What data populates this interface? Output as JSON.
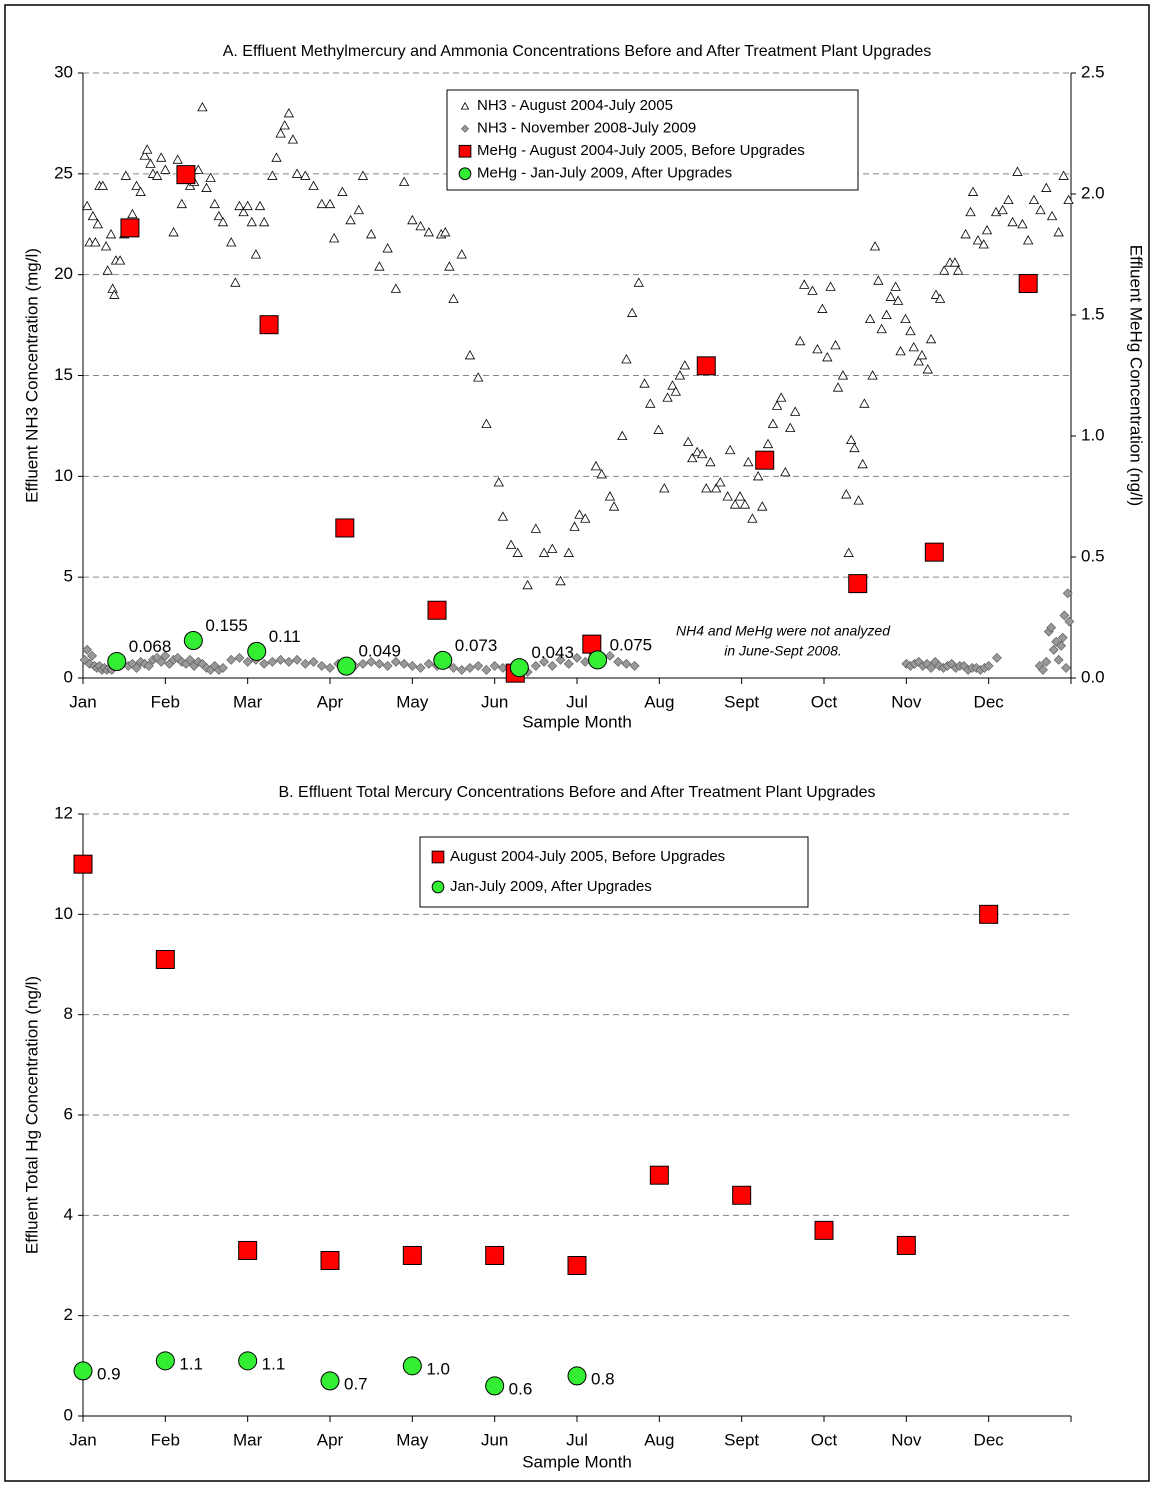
{
  "chart_data": [
    {
      "type": "scatter",
      "title": "A. Effluent Methylmercury and Ammonia Concentrations Before and After Treatment Plant Upgrades",
      "xlabel": "Sample Month",
      "ylabel": "Effluent NH3 Concentration (mg/l)",
      "y2label": "Effluent MeHg Concentration (ng/l)",
      "xlim": [
        0,
        12
      ],
      "xticks": [
        {
          "value": 0,
          "label": "Jan"
        },
        {
          "value": 1,
          "label": "Feb"
        },
        {
          "value": 2,
          "label": "Mar"
        },
        {
          "value": 3,
          "label": "Apr"
        },
        {
          "value": 4,
          "label": "May"
        },
        {
          "value": 5,
          "label": "Jun"
        },
        {
          "value": 6,
          "label": "Jul"
        },
        {
          "value": 7,
          "label": "Aug"
        },
        {
          "value": 8,
          "label": "Sept"
        },
        {
          "value": 9,
          "label": "Oct"
        },
        {
          "value": 10,
          "label": "Nov"
        },
        {
          "value": 11,
          "label": "Dec"
        }
      ],
      "ylim": [
        0,
        30
      ],
      "yticks": [
        0,
        5,
        10,
        15,
        20,
        25,
        30
      ],
      "y2lim": [
        0,
        2.5
      ],
      "y2ticks": [
        {
          "value": 0,
          "label": "0.0"
        },
        {
          "value": 0.5,
          "label": "0.5"
        },
        {
          "value": 1,
          "label": "1.0"
        },
        {
          "value": 1.5,
          "label": "1.5"
        },
        {
          "value": 2,
          "label": "2.0"
        },
        {
          "value": 2.5,
          "label": "2.5"
        }
      ],
      "grid": true,
      "annotation": [
        "NH4 and MeHg were not analyzed",
        "in June-Sept 2008."
      ],
      "series": [
        {
          "name": "NH3 - August 2004-July 2005",
          "marker": "triangle",
          "color": "#ffffff",
          "x": [
            0.05,
            0.08,
            0.12,
            0.15,
            0.18,
            0.2,
            0.24,
            0.28,
            0.3,
            0.34,
            0.36,
            0.38,
            0.4,
            0.45,
            0.5,
            0.52,
            0.6,
            0.65,
            0.7,
            0.75,
            0.78,
            0.82,
            0.85,
            0.9,
            0.95,
            1.0,
            1.1,
            1.15,
            1.2,
            1.25,
            1.3,
            1.35,
            1.4,
            1.45,
            1.5,
            1.55,
            1.6,
            1.65,
            1.7,
            1.8,
            1.85,
            1.9,
            1.95,
            2.0,
            2.05,
            2.1,
            2.15,
            2.2,
            2.3,
            2.35,
            2.4,
            2.45,
            2.5,
            2.55,
            2.6,
            2.7,
            2.8,
            2.9,
            3.0,
            3.05,
            3.15,
            3.25,
            3.35,
            3.4,
            3.5,
            3.6,
            3.7,
            3.8,
            3.9,
            4.0,
            4.1,
            4.2,
            4.35,
            4.4,
            4.45,
            4.5,
            4.6,
            4.7,
            4.8,
            4.9,
            5.05,
            5.1,
            5.2,
            5.28,
            5.4,
            5.5,
            5.6,
            5.7,
            5.8,
            5.9,
            5.97,
            6.03,
            6.1,
            6.23,
            6.3,
            6.4,
            6.45,
            6.55,
            6.6,
            6.67,
            6.75,
            6.82,
            6.89,
            6.99,
            7.06,
            7.1,
            7.16,
            7.2,
            7.25,
            7.31,
            7.35,
            7.4,
            7.46,
            7.52,
            7.57,
            7.62,
            7.69,
            7.74,
            7.83,
            7.86,
            7.92,
            7.98,
            8.04,
            8.08,
            8.13,
            8.2,
            8.25,
            8.32,
            8.38,
            8.43,
            8.48,
            8.53,
            8.59,
            8.65,
            8.71,
            8.76,
            8.86,
            8.92,
            8.98,
            9.04,
            9.08,
            9.14,
            9.17,
            9.23,
            9.27,
            9.3,
            9.33,
            9.37,
            9.42,
            9.47,
            9.49,
            9.56,
            9.59,
            9.62,
            9.66,
            9.7,
            9.76,
            9.81,
            9.87,
            9.9,
            9.93,
            9.99,
            10.05,
            10.09,
            10.15,
            10.19,
            10.26,
            10.3,
            10.36,
            10.41,
            10.46,
            10.53,
            10.59,
            10.63,
            10.72,
            10.78,
            10.81,
            10.87,
            10.94,
            10.98,
            11.09,
            11.17,
            11.24,
            11.29,
            11.35,
            11.41,
            11.48,
            11.55,
            11.63,
            11.7,
            11.77,
            11.85,
            11.91,
            11.97
          ],
          "values": [
            23.4,
            21.6,
            22.9,
            21.6,
            22.5,
            24.4,
            24.4,
            21.4,
            20.2,
            22.0,
            19.3,
            19.0,
            20.7,
            20.7,
            22.0,
            24.9,
            23.0,
            24.4,
            24.1,
            25.9,
            26.2,
            25.5,
            25.0,
            24.9,
            25.8,
            25.2,
            22.1,
            25.7,
            23.5,
            25.1,
            24.4,
            24.6,
            25.2,
            28.3,
            24.3,
            24.8,
            23.5,
            22.9,
            22.6,
            21.6,
            19.6,
            23.4,
            23.1,
            23.4,
            22.6,
            21.0,
            23.4,
            22.6,
            24.9,
            25.8,
            27.0,
            27.4,
            28.0,
            26.7,
            25.0,
            24.9,
            24.4,
            23.5,
            23.5,
            21.8,
            24.1,
            22.7,
            23.2,
            24.9,
            22.0,
            20.4,
            21.3,
            19.3,
            24.6,
            22.7,
            22.4,
            22.1,
            22.0,
            22.1,
            20.4,
            18.8,
            21.0,
            16.0,
            14.9,
            12.6,
            9.7,
            8.0,
            6.6,
            6.2,
            4.6,
            7.4,
            6.2,
            6.4,
            4.8,
            6.2,
            7.5,
            8.1,
            7.9,
            10.5,
            10.1,
            9.0,
            8.5,
            12.0,
            15.8,
            18.1,
            19.6,
            14.6,
            13.6,
            12.3,
            9.4,
            13.9,
            14.5,
            14.2,
            15.0,
            15.5,
            11.7,
            10.9,
            11.2,
            11.1,
            9.4,
            10.7,
            9.4,
            9.7,
            9.0,
            11.3,
            8.6,
            9.0,
            8.6,
            10.7,
            7.9,
            10.0,
            8.5,
            11.6,
            12.6,
            13.5,
            13.9,
            10.2,
            12.4,
            13.2,
            16.7,
            19.5,
            19.2,
            16.3,
            18.3,
            15.9,
            19.4,
            16.5,
            14.4,
            15.0,
            9.1,
            6.2,
            11.8,
            11.4,
            8.8,
            10.6,
            13.6,
            17.8,
            15.0,
            21.4,
            19.7,
            17.3,
            18.0,
            18.9,
            19.4,
            18.7,
            16.2,
            17.8,
            17.2,
            16.4,
            15.7,
            16.0,
            15.3,
            16.8,
            19.0,
            18.8,
            20.2,
            20.6,
            20.6,
            20.2,
            22.0,
            23.1,
            24.1,
            21.7,
            21.5,
            22.2,
            23.1,
            23.2,
            23.7,
            22.6,
            25.1,
            22.5,
            21.7,
            23.7,
            23.2,
            24.3,
            22.9,
            22.1,
            24.9,
            23.7
          ]
        },
        {
          "name": "NH3 - November 2008-July 2009",
          "marker": "diamond",
          "color": "#999999",
          "x": [
            0.02,
            0.05,
            0.08,
            0.11,
            0.14,
            0.17,
            0.2,
            0.23,
            0.26,
            0.29,
            0.32,
            0.35,
            0.38,
            0.45,
            0.55,
            0.6,
            0.65,
            0.7,
            0.75,
            0.8,
            0.85,
            0.9,
            0.95,
            1.0,
            1.05,
            1.1,
            1.15,
            1.2,
            1.25,
            1.3,
            1.35,
            1.4,
            1.45,
            1.5,
            1.55,
            1.6,
            1.65,
            1.7,
            1.8,
            1.9,
            2.0,
            2.1,
            2.2,
            2.3,
            2.4,
            2.5,
            2.6,
            2.7,
            2.8,
            2.9,
            3.0,
            3.1,
            3.3,
            3.4,
            3.5,
            3.6,
            3.7,
            3.8,
            3.9,
            4.0,
            4.1,
            4.2,
            4.3,
            4.5,
            4.6,
            4.7,
            4.8,
            4.9,
            5.0,
            5.1,
            5.2,
            5.3,
            5.4,
            5.5,
            5.6,
            5.7,
            5.8,
            5.9,
            6.0,
            6.1,
            6.2,
            6.3,
            6.4,
            6.5,
            6.6,
            6.7,
            10.0,
            10.05,
            10.1,
            10.15,
            10.2,
            10.25,
            10.3,
            10.35,
            10.4,
            10.45,
            10.5,
            10.55,
            10.6,
            10.65,
            10.7,
            10.75,
            10.8,
            10.85,
            10.9,
            10.95,
            11.0,
            11.1,
            11.62,
            11.66,
            11.7,
            11.73,
            11.76,
            11.79,
            11.82,
            11.85,
            11.88,
            11.9,
            11.92,
            11.94,
            11.96,
            11.98
          ],
          "values": [
            0.9,
            1.4,
            0.7,
            1.1,
            0.6,
            0.5,
            0.6,
            0.4,
            0.5,
            0.4,
            0.5,
            0.4,
            0.6,
            0.7,
            0.6,
            0.7,
            0.5,
            0.8,
            0.7,
            0.6,
            0.9,
            1.0,
            0.8,
            1.1,
            0.7,
            0.9,
            1.0,
            0.8,
            0.7,
            0.9,
            0.6,
            0.8,
            0.7,
            0.5,
            0.4,
            0.6,
            0.4,
            0.5,
            0.9,
            1.0,
            0.8,
            0.9,
            0.7,
            0.8,
            0.9,
            0.8,
            0.9,
            0.7,
            0.8,
            0.6,
            0.5,
            0.7,
            0.6,
            0.7,
            0.8,
            0.7,
            0.6,
            0.8,
            0.7,
            0.6,
            0.5,
            0.7,
            0.6,
            0.5,
            0.4,
            0.5,
            0.6,
            0.4,
            0.6,
            0.5,
            0.4,
            0.5,
            0.3,
            0.6,
            0.8,
            0.6,
            0.9,
            0.7,
            1.0,
            0.8,
            1.2,
            0.9,
            1.1,
            0.8,
            0.7,
            0.6,
            0.7,
            0.6,
            0.7,
            0.8,
            0.6,
            0.7,
            0.5,
            0.8,
            0.6,
            0.5,
            0.6,
            0.7,
            0.5,
            0.6,
            0.6,
            0.4,
            0.5,
            0.5,
            0.4,
            0.5,
            0.6,
            1.0,
            0.6,
            0.4,
            0.8,
            2.3,
            2.5,
            1.4,
            1.8,
            0.9,
            1.6,
            2.0,
            3.1,
            0.5,
            4.2,
            2.8
          ]
        },
        {
          "name": "MeHg - August 2004-July 2005, Before Upgrades",
          "marker": "square",
          "color": "#ff0000",
          "axis": "y2",
          "x": [
            0.57,
            1.25,
            2.26,
            3.18,
            4.3,
            5.25,
            6.18,
            7.57,
            8.28,
            9.41,
            10.34,
            11.48
          ],
          "values": [
            1.86,
            2.08,
            1.46,
            0.62,
            0.28,
            0.02,
            0.14,
            1.29,
            0.9,
            0.39,
            0.52,
            1.63
          ]
        },
        {
          "name": "MeHg - Jan-July 2009, After Upgrades",
          "marker": "circle",
          "color": "#33ee33",
          "axis": "y2",
          "data_labels": true,
          "x": [
            0.41,
            1.34,
            2.11,
            3.2,
            4.37,
            5.3,
            6.25
          ],
          "values": [
            0.068,
            0.155,
            0.11,
            0.049,
            0.073,
            0.043,
            0.075
          ]
        }
      ]
    },
    {
      "type": "scatter",
      "title": "B. Effluent Total Mercury Concentrations Before and After Treatment Plant Upgrades",
      "xlabel": "Sample Month",
      "ylabel": "Effluent Total Hg Concentration (ng/l)",
      "xlim": [
        0,
        12
      ],
      "xticks": [
        {
          "value": 0,
          "label": "Jan"
        },
        {
          "value": 1,
          "label": "Feb"
        },
        {
          "value": 2,
          "label": "Mar"
        },
        {
          "value": 3,
          "label": "Apr"
        },
        {
          "value": 4,
          "label": "May"
        },
        {
          "value": 5,
          "label": "Jun"
        },
        {
          "value": 6,
          "label": "Jul"
        },
        {
          "value": 7,
          "label": "Aug"
        },
        {
          "value": 8,
          "label": "Sept"
        },
        {
          "value": 9,
          "label": "Oct"
        },
        {
          "value": 10,
          "label": "Nov"
        },
        {
          "value": 11,
          "label": "Dec"
        }
      ],
      "ylim": [
        0,
        12
      ],
      "yticks": [
        0,
        2,
        4,
        6,
        8,
        10,
        12
      ],
      "grid": true,
      "series": [
        {
          "name": "August 2004-July 2005, Before Upgrades",
          "marker": "square",
          "color": "#ff0000",
          "x": [
            0,
            1,
            2,
            3,
            4,
            5,
            6,
            7,
            8,
            9,
            10,
            11
          ],
          "values": [
            11.0,
            9.1,
            3.3,
            3.1,
            3.2,
            3.2,
            3.0,
            4.8,
            4.4,
            3.7,
            3.4,
            10.0
          ]
        },
        {
          "name": "Jan-July 2009, After Upgrades",
          "marker": "circle",
          "color": "#33ee33",
          "data_labels": true,
          "x": [
            0,
            1,
            2,
            3,
            4,
            5,
            6
          ],
          "values": [
            0.9,
            1.1,
            1.1,
            0.7,
            1.0,
            0.6,
            0.8
          ],
          "value_labels": [
            "0.9",
            "1.1",
            "1.1",
            "0.7",
            "1.0",
            "0.6",
            "0.8"
          ]
        }
      ]
    }
  ]
}
